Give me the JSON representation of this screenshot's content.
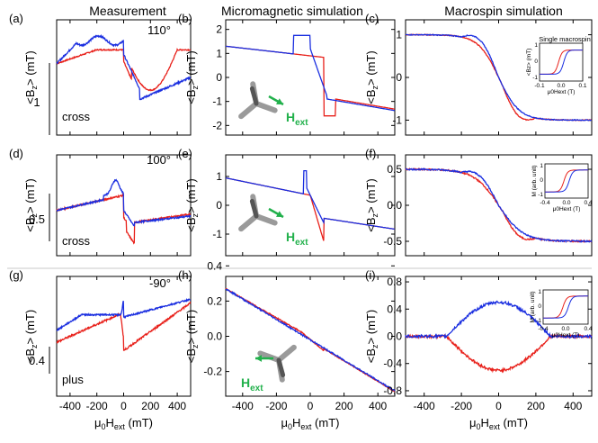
{
  "columns": {
    "measurement": "Measurement",
    "micromagnetic": "Micromagnetic simulation",
    "macrospin": "Macrospin simulation"
  },
  "colors": {
    "red": "#e8201a",
    "blue": "#1a2ee0",
    "green": "#22b14c",
    "gray": "#8c8c8c"
  },
  "panels": [
    {
      "id": "a",
      "label": "(a)",
      "angle": "110°",
      "config": "cross",
      "scale_bar": "1"
    },
    {
      "id": "b",
      "label": "(b)"
    },
    {
      "id": "c",
      "label": "(c)",
      "inset_title": "Single macrospin"
    },
    {
      "id": "d",
      "label": "(d)",
      "angle": "100°",
      "config": "cross",
      "scale_bar": "0.5"
    },
    {
      "id": "e",
      "label": "(e)"
    },
    {
      "id": "f",
      "label": "(f)"
    },
    {
      "id": "g",
      "label": "(g)",
      "angle": "-90°",
      "config": "plus",
      "scale_bar": "0.4"
    },
    {
      "id": "h",
      "label": "(h)"
    },
    {
      "id": "i",
      "label": "(i)"
    }
  ],
  "ylabel": "<B_z> (mT)",
  "xlabel": "μ0Hext (mT)",
  "hext_label": "Hext",
  "x_ticks": [
    "-400",
    "-200",
    "0",
    "200",
    "400"
  ],
  "inset_c": {
    "x_ticks": [
      "-0.1",
      "0.0",
      "0.1"
    ],
    "y_ticks": [
      "1",
      "0",
      "-1"
    ],
    "xlabel": "μ0Hext (T)",
    "ylabel": "<Bz> (mT)"
  },
  "inset_f": {
    "x_ticks": [
      "-0.4",
      "0.0",
      "0.4"
    ],
    "y_ticks": [
      "1",
      "0",
      "-1"
    ],
    "xlabel": "μ0Hext (T)",
    "ylabel": "M (arb. unit)"
  },
  "inset_i": {
    "x_ticks": [
      "-0.4",
      "0.0",
      "0.4"
    ],
    "y_ticks": [
      "1",
      "0",
      "-1"
    ],
    "xlabel": "μ0Hext (T)",
    "ylabel": "M (arb. unit)"
  },
  "chart_data": [
    {
      "panel": "b",
      "type": "line",
      "xlim": [
        -500,
        500
      ],
      "ylim": [
        -2.4,
        2.4
      ],
      "y_ticks": [
        "2",
        "1",
        "0",
        "-1",
        "-2"
      ],
      "title": "",
      "xlabel": "",
      "ylabel": "<Bz> (mT)"
    },
    {
      "panel": "c",
      "type": "line",
      "xlim": [
        -500,
        500
      ],
      "ylim": [
        -1.35,
        1.35
      ],
      "y_ticks": [
        "1",
        "0",
        "-1"
      ],
      "title": "",
      "xlabel": "",
      "ylabel": "<Bz> (mT)"
    },
    {
      "panel": "e",
      "type": "line",
      "xlim": [
        -500,
        500
      ],
      "ylim": [
        -1.75,
        1.75
      ],
      "y_ticks": [
        "1",
        "0",
        "-1"
      ],
      "title": "",
      "xlabel": "",
      "ylabel": "<Bz> (mT)"
    },
    {
      "panel": "f",
      "type": "line",
      "xlim": [
        -500,
        500
      ],
      "ylim": [
        -0.7,
        0.7
      ],
      "y_ticks": [
        "0.5",
        "0.0",
        "-0.5"
      ],
      "title": "",
      "xlabel": "",
      "ylabel": "<Bz> (mT)"
    },
    {
      "panel": "h",
      "type": "line",
      "xlim": [
        -500,
        500
      ],
      "ylim": [
        -0.34,
        0.34
      ],
      "y_ticks": [
        "0.4",
        "0.2",
        "0.0",
        "-0.2"
      ],
      "title": "",
      "xlabel": "μ0Hext (mT)",
      "ylabel": "<Bz> (mT)"
    },
    {
      "panel": "i",
      "type": "line",
      "xlim": [
        -500,
        500
      ],
      "ylim": [
        -0.88,
        0.88
      ],
      "y_ticks": [
        "0.8",
        "0.4",
        "0.0",
        "-0.4",
        "-0.8"
      ],
      "title": "",
      "xlabel": "μ0Hext (mT)",
      "ylabel": "<Bz> (mT)"
    }
  ]
}
